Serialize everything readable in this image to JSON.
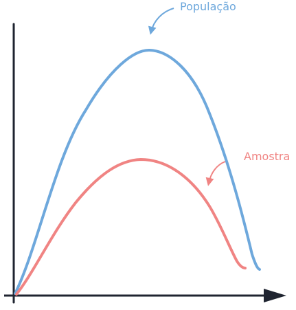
{
  "labels": {
    "populacao": "População",
    "amostra": "Amostra"
  },
  "colors": {
    "populacao": "#6ea8dc",
    "amostra": "#f08483",
    "axis": "#1f2430"
  }
}
